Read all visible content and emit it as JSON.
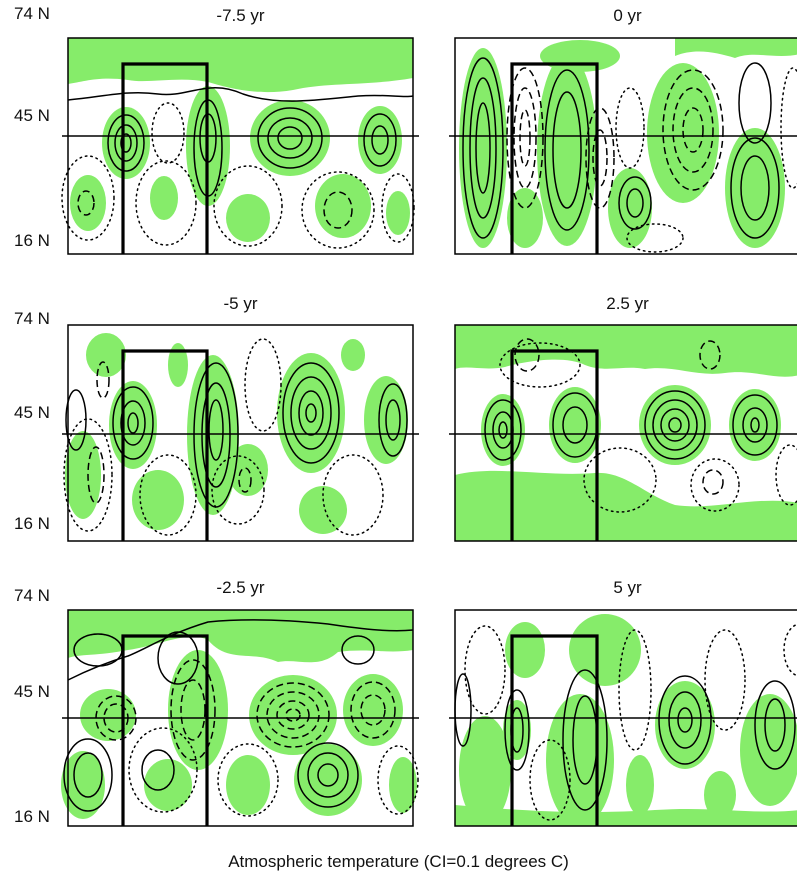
{
  "figure": {
    "caption": "Atmospheric temperature (CI=0.1 degrees C)",
    "shading_color": "#86ec6a",
    "line_color": "#000000"
  },
  "lat_labels": {
    "top": "74 N",
    "mid": "45 N",
    "bottom": "16 N"
  },
  "panels": [
    {
      "title": "-7.5 yr"
    },
    {
      "title": "0 yr"
    },
    {
      "title": "-5 yr"
    },
    {
      "title": "2.5 yr"
    },
    {
      "title": "-2.5 yr"
    },
    {
      "title": "5 yr"
    }
  ]
}
